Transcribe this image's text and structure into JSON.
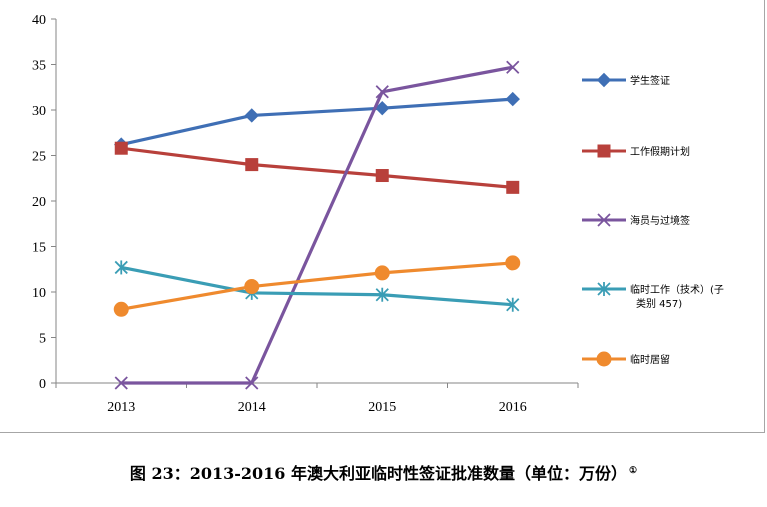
{
  "chart_data": {
    "type": "line",
    "categories": [
      "2013",
      "2014",
      "2015",
      "2016"
    ],
    "ylim": [
      0,
      40
    ],
    "yticks": [
      "0",
      "5",
      "10",
      "15",
      "20",
      "25",
      "30",
      "35",
      "40"
    ],
    "grid": false,
    "legend_position": "right",
    "series": [
      {
        "name": "学生签证",
        "color": "#3f6fb5",
        "marker": "diamond",
        "values": [
          26.2,
          29.4,
          30.2,
          31.2
        ]
      },
      {
        "name": "工作假期计划",
        "color": "#b8403b",
        "marker": "square",
        "values": [
          25.8,
          24.0,
          22.8,
          21.5
        ]
      },
      {
        "name": "海员与过境签",
        "color": "#7a559e",
        "marker": "x",
        "values": [
          0,
          0,
          32.0,
          34.7
        ]
      },
      {
        "name": "临时工作（技术）(子类别 457)",
        "color": "#3a9db5",
        "marker": "star",
        "values": [
          12.7,
          9.9,
          9.7,
          8.6
        ]
      },
      {
        "name": "临时居留",
        "color": "#ef8a2e",
        "marker": "circle",
        "values": [
          8.1,
          10.6,
          12.1,
          13.2
        ]
      }
    ]
  },
  "caption": {
    "text": "图 23：2013-2016 年澳大利亚临时性签证批准数量（单位：万份）",
    "footnote_mark": "①"
  }
}
